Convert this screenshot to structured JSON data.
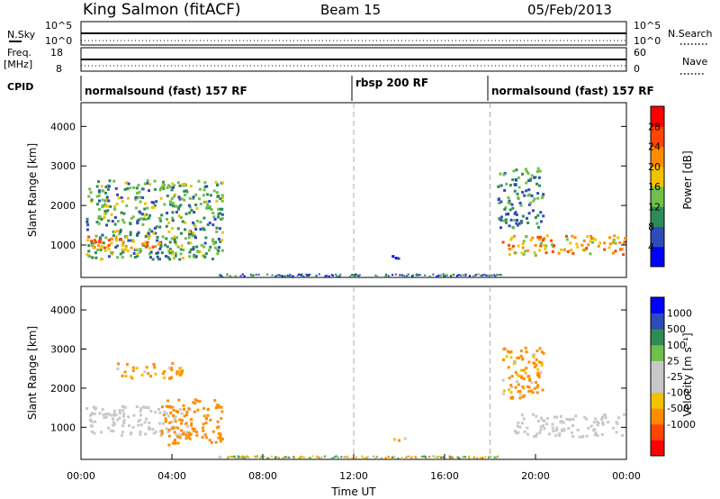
{
  "header": {
    "station": "King Salmon (fitACF)",
    "beam": "Beam 15",
    "date": "05/Feb/2013"
  },
  "panels": {
    "nsky": {
      "left_label": "N.Sky",
      "right_label": "N.Search",
      "left_ticks": [
        "10^5",
        "10^0"
      ],
      "right_ticks": [
        "10^5",
        "10^0"
      ]
    },
    "freq": {
      "left_label": "Freq.",
      "left_unit": "[MHz]",
      "right_label": "Nave",
      "left_ticks": [
        "18",
        "8"
      ],
      "right_ticks": [
        "60",
        "0"
      ]
    },
    "cpid": {
      "label": "CPID",
      "modes": [
        {
          "name": "normalsound (fast) 157 RF",
          "start_hour": 0
        },
        {
          "name": "rbsp 200 RF",
          "start_hour": 12
        },
        {
          "name": "normalsound (fast) 157 RF",
          "start_hour": 18
        }
      ]
    }
  },
  "colors": {
    "power_scale": [
      "#0000ff",
      "#2f4bb8",
      "#2e8b57",
      "#6fbf4a",
      "#f2c200",
      "#ff8c00",
      "#ff4500",
      "#ff0000"
    ],
    "velocity_scale": [
      "#ff0000",
      "#ff4500",
      "#ff8c00",
      "#f2c200",
      "#c8c8c8",
      "#c8c8c8",
      "#6fbf4a",
      "#2e8b57",
      "#2f4bb8",
      "#0000ff"
    ]
  },
  "chart_data": [
    {
      "type": "heatmap",
      "title": "",
      "xlabel": "",
      "ylabel": "Slant Range [km]",
      "xlim": [
        0,
        24
      ],
      "ylim": [
        180,
        4600
      ],
      "x_ticks": [],
      "y_ticks": [
        1000,
        2000,
        3000,
        4000
      ],
      "mode_change_hours": [
        12,
        18
      ],
      "colorbar": {
        "label": "Power [dB]",
        "ticks": [
          4,
          8,
          12,
          16,
          20,
          24,
          28
        ],
        "range": [
          0,
          32
        ]
      },
      "echo_regions": [
        {
          "start_hour": 0.2,
          "end_hour": 6.2,
          "range_km": [
            600,
            2600
          ],
          "typical_value": 12
        },
        {
          "start_hour": 0.2,
          "end_hour": 3.5,
          "range_km": [
            850,
            1200
          ],
          "typical_value": 22
        },
        {
          "start_hour": 13.5,
          "end_hour": 14.6,
          "range_km": [
            620,
            680
          ],
          "typical_value": 6
        },
        {
          "start_hour": 18.5,
          "end_hour": 23.9,
          "range_km": [
            700,
            1200
          ],
          "typical_value": 20
        },
        {
          "start_hour": 18.3,
          "end_hour": 20.3,
          "range_km": [
            1400,
            2900
          ],
          "typical_value": 10
        }
      ]
    },
    {
      "type": "heatmap",
      "title": "",
      "xlabel": "Time UT",
      "ylabel": "Slant Range [km]",
      "xlim": [
        0,
        24
      ],
      "ylim": [
        180,
        4600
      ],
      "x_ticks": [
        "00:00",
        "04:00",
        "08:00",
        "12:00",
        "16:00",
        "20:00",
        "00:00"
      ],
      "y_ticks": [
        1000,
        2000,
        3000,
        4000
      ],
      "mode_change_hours": [
        12,
        18
      ],
      "colorbar": {
        "label": "Velocity [m s⁻¹]",
        "ticks": [
          "1000",
          "500",
          "100",
          "25",
          "-25",
          "-100",
          "-500",
          "-1000"
        ]
      },
      "echo_regions": [
        {
          "start_hour": 0.2,
          "end_hour": 4.8,
          "range_km": [
            750,
            1500
          ],
          "typical_value": 0
        },
        {
          "start_hour": 3.5,
          "end_hour": 6.2,
          "range_km": [
            500,
            1700
          ],
          "typical_value": -300
        },
        {
          "start_hour": 1.5,
          "end_hour": 4.5,
          "range_km": [
            2200,
            2600
          ],
          "typical_value": -200
        },
        {
          "start_hour": 13.5,
          "end_hour": 14.6,
          "range_km": [
            620,
            680
          ],
          "typical_value": -150
        },
        {
          "start_hour": 19.0,
          "end_hour": 23.9,
          "range_km": [
            700,
            1300
          ],
          "typical_value": 0
        },
        {
          "start_hour": 18.5,
          "end_hour": 20.3,
          "range_km": [
            1700,
            3000
          ],
          "typical_value": -200
        }
      ]
    }
  ]
}
